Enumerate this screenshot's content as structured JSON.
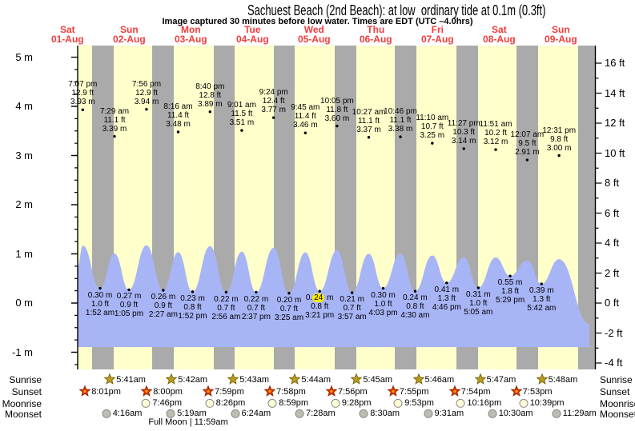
{
  "title": "Sachuest Beach (2nd Beach): at low  ordinary tide at 0.1m (0.3ft)",
  "subtitle": "Image captured 30 minutes before low water. Times are EDT (UTC –4.0hrs)",
  "row_labels": {
    "sunrise": "Sunrise",
    "sunset": "Sunset",
    "moonrise": "Moonrise",
    "moonset": "Moonset"
  },
  "full_moon_label": "Full Moon | 11:59am",
  "colors": {
    "plot_bg": "#ffffcc",
    "night_band": "#aaaaaa",
    "tide_fill": "#a7b4f6",
    "date_red": "#f43b3b",
    "axis_black": "#000000",
    "sunrise_star": "#b99d1e",
    "sunrise_star_edge": "#7c6a0e",
    "sunset_star": "#dd3a00",
    "sunset_star_edge": "#992600",
    "sunset_star_center": "#ff9900",
    "moonrise_fill": "#ffffd8",
    "moonset_fill": "#bdbdb4",
    "moon_edge": "#8a8a8a",
    "highlight": "#ffec00"
  },
  "chart_data": {
    "type": "area",
    "title": "Sachuest Beach (2nd Beach): at low  ordinary tide at 0.1m (0.3ft)",
    "x_days": [
      {
        "name": "Sat",
        "date": "01-Aug"
      },
      {
        "name": "Sun",
        "date": "02-Aug"
      },
      {
        "name": "Mon",
        "date": "03-Aug"
      },
      {
        "name": "Tue",
        "date": "04-Aug"
      },
      {
        "name": "Wed",
        "date": "05-Aug"
      },
      {
        "name": "Thu",
        "date": "06-Aug"
      },
      {
        "name": "Fri",
        "date": "07-Aug"
      },
      {
        "name": "Sat",
        "date": "08-Aug"
      },
      {
        "name": "Sun",
        "date": "09-Aug"
      }
    ],
    "y_axis_left": {
      "unit": "m",
      "min": -1,
      "max": 5,
      "ticks": [
        {
          "v": 5,
          "label": "5 m"
        },
        {
          "v": 4,
          "label": "4 m"
        },
        {
          "v": 3,
          "label": "3 m"
        },
        {
          "v": 2,
          "label": "2 m"
        },
        {
          "v": 1,
          "label": "1 m"
        },
        {
          "v": 0,
          "label": "0 m"
        },
        {
          "v": -1,
          "label": "-1 m"
        }
      ]
    },
    "y_axis_right": {
      "unit": "ft",
      "min": -4,
      "max": 16,
      "ticks": [
        {
          "v": 16,
          "label": "16 ft"
        },
        {
          "v": 14,
          "label": "14 ft"
        },
        {
          "v": 12,
          "label": "12 ft"
        },
        {
          "v": 10,
          "label": "10 ft"
        },
        {
          "v": 8,
          "label": "8 ft"
        },
        {
          "v": 6,
          "label": "6 ft"
        },
        {
          "v": 4,
          "label": "4 ft"
        },
        {
          "v": 2,
          "label": "2 ft"
        },
        {
          "v": 0,
          "label": "0 ft"
        },
        {
          "v": -2,
          "label": "-2 ft"
        },
        {
          "v": -4,
          "label": "-4 ft"
        }
      ]
    },
    "tide_events": [
      {
        "day": 0,
        "time": "7:07 pm",
        "type": "high",
        "height_m": 3.93,
        "height_ft": 12.9
      },
      {
        "day": 1,
        "time": "1:52 am",
        "type": "low",
        "height_m": 0.3,
        "height_ft": 1.0
      },
      {
        "day": 1,
        "time": "7:29 am",
        "type": "high",
        "height_m": 3.39,
        "height_ft": 11.1
      },
      {
        "day": 1,
        "time": "1:05 pm",
        "type": "low",
        "height_m": 0.27,
        "height_ft": 0.9
      },
      {
        "day": 1,
        "time": "7:56 pm",
        "type": "high",
        "height_m": 3.94,
        "height_ft": 12.9
      },
      {
        "day": 2,
        "time": "2:27 am",
        "type": "low",
        "height_m": 0.26,
        "height_ft": 0.9
      },
      {
        "day": 2,
        "time": "8:16 am",
        "type": "high",
        "height_m": 3.48,
        "height_ft": 11.4
      },
      {
        "day": 2,
        "time": "1:52 pm",
        "type": "low",
        "height_m": 0.23,
        "height_ft": 0.8
      },
      {
        "day": 2,
        "time": "8:40 pm",
        "type": "high",
        "height_m": 3.89,
        "height_ft": 12.8
      },
      {
        "day": 3,
        "time": "2:56 am",
        "type": "low",
        "height_m": 0.22,
        "height_ft": 0.7
      },
      {
        "day": 3,
        "time": "9:01 am",
        "type": "high",
        "height_m": 3.51,
        "height_ft": 11.5
      },
      {
        "day": 3,
        "time": "2:37 pm",
        "type": "low",
        "height_m": 0.22,
        "height_ft": 0.7
      },
      {
        "day": 3,
        "time": "9:24 pm",
        "type": "high",
        "height_m": 3.77,
        "height_ft": 12.4
      },
      {
        "day": 4,
        "time": "3:25 am",
        "type": "low",
        "height_m": 0.2,
        "height_ft": 0.7
      },
      {
        "day": 4,
        "time": "9:45 am",
        "type": "high",
        "height_m": 3.46,
        "height_ft": 11.4
      },
      {
        "day": 4,
        "time": "3:21 pm",
        "type": "low",
        "height_m": 0.24,
        "height_ft": 0.8,
        "highlighted": true
      },
      {
        "day": 4,
        "time": "10:05 pm",
        "type": "high",
        "height_m": 3.6,
        "height_ft": 11.8
      },
      {
        "day": 5,
        "time": "3:57 am",
        "type": "low",
        "height_m": 0.21,
        "height_ft": 0.7
      },
      {
        "day": 5,
        "time": "10:27 am",
        "type": "high",
        "height_m": 3.37,
        "height_ft": 11.1
      },
      {
        "day": 5,
        "time": "4:03 pm",
        "type": "low",
        "height_m": 0.3,
        "height_ft": 1.0
      },
      {
        "day": 5,
        "time": "10:46 pm",
        "type": "high",
        "height_m": 3.38,
        "height_ft": 11.1
      },
      {
        "day": 6,
        "time": "4:30 am",
        "type": "low",
        "height_m": 0.24,
        "height_ft": 0.8
      },
      {
        "day": 6,
        "time": "11:10 am",
        "type": "high",
        "height_m": 3.25,
        "height_ft": 10.7
      },
      {
        "day": 6,
        "time": "4:46 pm",
        "type": "low",
        "height_m": 0.41,
        "height_ft": 1.3
      },
      {
        "day": 6,
        "time": "11:27 pm",
        "type": "high",
        "height_m": 3.14,
        "height_ft": 10.3
      },
      {
        "day": 7,
        "time": "5:05 am",
        "type": "low",
        "height_m": 0.31,
        "height_ft": 1.0
      },
      {
        "day": 7,
        "time": "11:51 am",
        "type": "high",
        "height_m": 3.12,
        "height_ft": 10.2
      },
      {
        "day": 7,
        "time": "5:29 pm",
        "type": "low",
        "height_m": 0.55,
        "height_ft": 1.8
      },
      {
        "day": 8,
        "time": "12:07 am",
        "type": "high",
        "height_m": 2.91,
        "height_ft": 9.5
      },
      {
        "day": 8,
        "time": "5:42 am",
        "type": "low",
        "height_m": 0.39,
        "height_ft": 1.3
      },
      {
        "day": 8,
        "time": "12:31 pm",
        "type": "high",
        "height_m": 3.0,
        "height_ft": 9.8
      }
    ],
    "astro": {
      "sunrise": [
        {
          "day": 1,
          "time": "5:41am"
        },
        {
          "day": 2,
          "time": "5:42am"
        },
        {
          "day": 3,
          "time": "5:43am"
        },
        {
          "day": 4,
          "time": "5:44am"
        },
        {
          "day": 5,
          "time": "5:45am"
        },
        {
          "day": 6,
          "time": "5:46am"
        },
        {
          "day": 7,
          "time": "5:47am"
        },
        {
          "day": 8,
          "time": "5:48am"
        }
      ],
      "sunset": [
        {
          "day": 0,
          "time": "8:01pm"
        },
        {
          "day": 1,
          "time": "8:00pm"
        },
        {
          "day": 2,
          "time": "7:59pm"
        },
        {
          "day": 3,
          "time": "7:58pm"
        },
        {
          "day": 4,
          "time": "7:56pm"
        },
        {
          "day": 5,
          "time": "7:55pm"
        },
        {
          "day": 6,
          "time": "7:54pm"
        },
        {
          "day": 7,
          "time": "7:53pm"
        }
      ],
      "moonrise": [
        {
          "day": 1,
          "time": "7:46pm"
        },
        {
          "day": 2,
          "time": "8:26pm"
        },
        {
          "day": 3,
          "time": "8:59pm"
        },
        {
          "day": 4,
          "time": "9:28pm"
        },
        {
          "day": 5,
          "time": "9:53pm"
        },
        {
          "day": 6,
          "time": "10:16pm"
        },
        {
          "day": 7,
          "time": "10:39pm"
        }
      ],
      "moonset": [
        {
          "day": 1,
          "time": "4:16am"
        },
        {
          "day": 2,
          "time": "5:19am"
        },
        {
          "day": 3,
          "time": "6:24am"
        },
        {
          "day": 4,
          "time": "7:28am"
        },
        {
          "day": 5,
          "time": "8:30am"
        },
        {
          "day": 6,
          "time": "9:31am"
        },
        {
          "day": 7,
          "time": "10:30am"
        },
        {
          "day": 8,
          "time": "11:29am"
        }
      ],
      "full_moon": "Full Moon | 11:59am"
    }
  }
}
